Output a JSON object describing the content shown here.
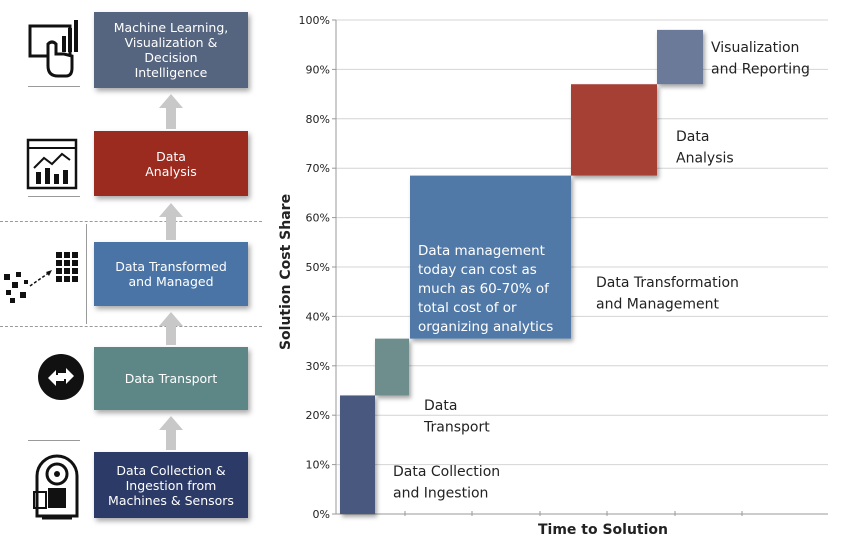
{
  "pipeline": {
    "steps": [
      {
        "label": "Machine Learning,\nVisualization &\nDecision\nIntelligence",
        "color": "#56657f",
        "icon": "touch-chart-icon"
      },
      {
        "label": "Data\nAnalysis",
        "color": "#9b2a1f",
        "icon": "analytics-dashboard-icon"
      },
      {
        "label": "Data Transformed\nand Managed",
        "color": "#4a74a5",
        "icon": "data-transform-icon"
      },
      {
        "label": "Data Transport",
        "color": "#5d8686",
        "icon": "transport-arrows-icon"
      },
      {
        "label": "Data Collection &\nIngestion from\nMachines & Sensors",
        "color": "#2b3a66",
        "icon": "scanner-machine-icon"
      }
    ]
  },
  "chart_data": {
    "type": "bar",
    "subtype": "waterfall-staircase",
    "xlabel": "Time to Solution",
    "ylabel": "Solution Cost Share",
    "ylim": [
      0,
      100
    ],
    "y_ticks": [
      "0%",
      "10%",
      "20%",
      "30%",
      "40%",
      "50%",
      "60%",
      "70%",
      "80%",
      "90%",
      "100%"
    ],
    "grid": true,
    "categories": [
      "Data Collection\nand Ingestion",
      "Data\nTransport",
      "Data Transformation\nand Management",
      "Data\nAnalysis",
      "Visualization\nand Reporting"
    ],
    "bars": [
      {
        "name": "Data Collection\nand Ingestion",
        "start": 0,
        "end": 24,
        "color": "#49587f"
      },
      {
        "name": "Data\nTransport",
        "start": 24,
        "end": 35.5,
        "color": "#6d8e8c"
      },
      {
        "name": "Data Transformation\nand Management",
        "start": 35.5,
        "end": 68.5,
        "color": "#5179a7"
      },
      {
        "name": "Data\nAnalysis",
        "start": 68.5,
        "end": 87,
        "color": "#a63f35"
      },
      {
        "name": "Visualization\nand Reporting",
        "start": 87,
        "end": 98,
        "color": "#6b7a98"
      }
    ],
    "annotation": "Data management\ntoday can cost as\nmuch as 60-70% of\ntotal cost of or\norganizing analytics"
  }
}
